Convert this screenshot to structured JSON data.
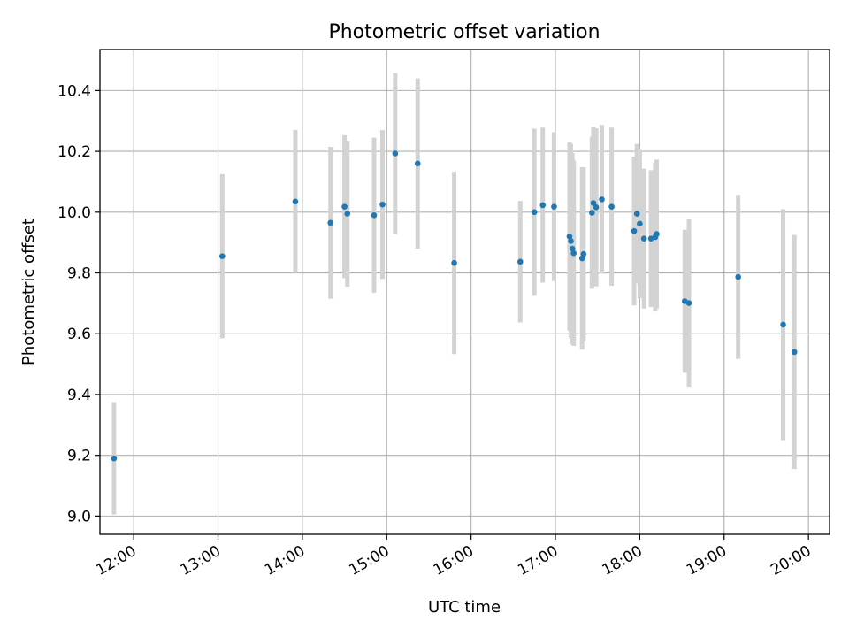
{
  "chart_data": {
    "type": "scatter",
    "title": "Photometric offset variation",
    "xlabel": "UTC time",
    "ylabel": "Photometric offset",
    "grid": true,
    "legend": "none",
    "xlim": [
      "11:36",
      "20:15"
    ],
    "ylim": [
      8.94,
      10.535
    ],
    "xticks": [
      "12:00",
      "13:00",
      "14:00",
      "15:00",
      "16:00",
      "17:00",
      "18:00",
      "19:00",
      "20:00"
    ],
    "yticks": [
      "9.0",
      "9.2",
      "9.4",
      "9.6",
      "9.8",
      "10.0",
      "10.2",
      "10.4"
    ],
    "point_color": "#1f77b4",
    "errorbar_color": "#d3d3d3",
    "points": [
      {
        "x": "11:46",
        "y": 9.19,
        "err": 0.185
      },
      {
        "x": "13:03",
        "y": 9.855,
        "err": 0.27
      },
      {
        "x": "13:55",
        "y": 10.035,
        "err": 0.235
      },
      {
        "x": "14:20",
        "y": 9.965,
        "err": 0.25
      },
      {
        "x": "14:30",
        "y": 10.018,
        "err": 0.235
      },
      {
        "x": "14:32",
        "y": 9.995,
        "err": 0.24
      },
      {
        "x": "14:51",
        "y": 9.99,
        "err": 0.255
      },
      {
        "x": "14:57",
        "y": 10.025,
        "err": 0.245
      },
      {
        "x": "15:06",
        "y": 10.193,
        "err": 0.265
      },
      {
        "x": "15:22",
        "y": 10.16,
        "err": 0.28
      },
      {
        "x": "15:48",
        "y": 9.833,
        "err": 0.3
      },
      {
        "x": "16:35",
        "y": 9.837,
        "err": 0.2
      },
      {
        "x": "16:45",
        "y": 10.0,
        "err": 0.275
      },
      {
        "x": "16:51",
        "y": 10.023,
        "err": 0.255
      },
      {
        "x": "16:59",
        "y": 10.018,
        "err": 0.245
      },
      {
        "x": "17:10",
        "y": 9.92,
        "err": 0.31
      },
      {
        "x": "17:11",
        "y": 9.905,
        "err": 0.32
      },
      {
        "x": "17:12",
        "y": 9.88,
        "err": 0.315
      },
      {
        "x": "17:13",
        "y": 9.865,
        "err": 0.305
      },
      {
        "x": "17:19",
        "y": 9.848,
        "err": 0.3
      },
      {
        "x": "17:20",
        "y": 9.862,
        "err": 0.285
      },
      {
        "x": "17:26",
        "y": 9.998,
        "err": 0.25
      },
      {
        "x": "17:27",
        "y": 10.03,
        "err": 0.25
      },
      {
        "x": "17:29",
        "y": 10.016,
        "err": 0.26
      },
      {
        "x": "17:33",
        "y": 10.042,
        "err": 0.245
      },
      {
        "x": "17:40",
        "y": 10.018,
        "err": 0.26
      },
      {
        "x": "17:56",
        "y": 9.938,
        "err": 0.245
      },
      {
        "x": "17:58",
        "y": 9.995,
        "err": 0.23
      },
      {
        "x": "18:00",
        "y": 9.962,
        "err": 0.245
      },
      {
        "x": "18:03",
        "y": 9.913,
        "err": 0.23
      },
      {
        "x": "18:08",
        "y": 9.913,
        "err": 0.225
      },
      {
        "x": "18:11",
        "y": 9.918,
        "err": 0.245
      },
      {
        "x": "18:12",
        "y": 9.928,
        "err": 0.245
      },
      {
        "x": "18:32",
        "y": 9.707,
        "err": 0.235
      },
      {
        "x": "18:35",
        "y": 9.701,
        "err": 0.275
      },
      {
        "x": "19:10",
        "y": 9.787,
        "err": 0.27
      },
      {
        "x": "19:42",
        "y": 9.63,
        "err": 0.38
      },
      {
        "x": "19:50",
        "y": 9.54,
        "err": 0.385
      }
    ]
  }
}
